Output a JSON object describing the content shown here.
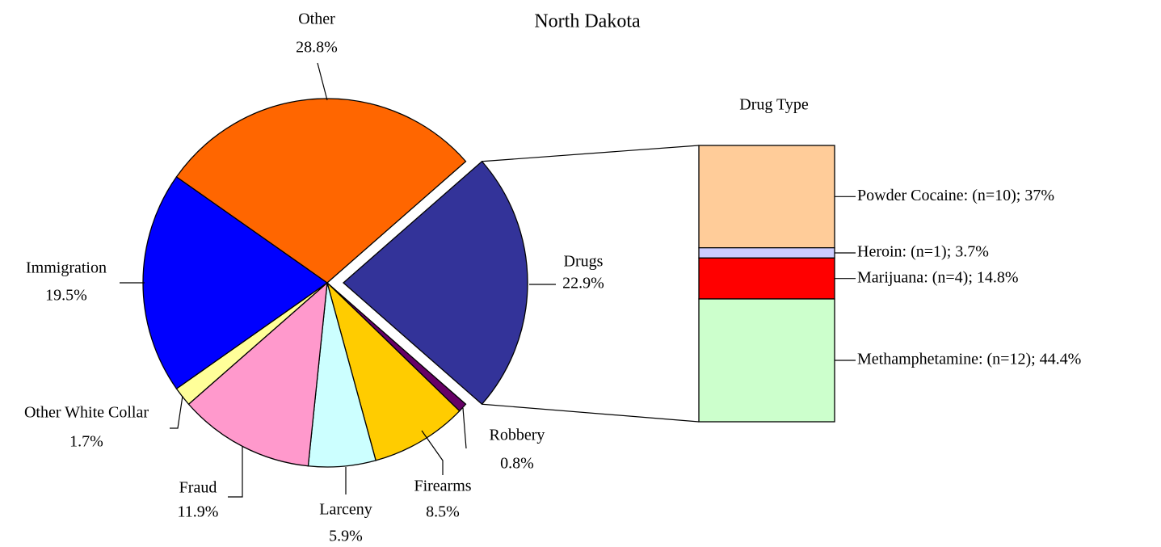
{
  "chart_data": {
    "type": "pie",
    "title": "North Dakota",
    "categories": [
      "Drugs",
      "Robbery",
      "Firearms",
      "Larceny",
      "Fraud",
      "Other White Collar",
      "Immigration",
      "Other"
    ],
    "values": [
      22.9,
      0.8,
      8.5,
      5.9,
      11.9,
      1.7,
      19.5,
      28.8
    ],
    "value_labels": [
      "22.9%",
      "0.8%",
      "8.5%",
      "5.9%",
      "11.9%",
      "1.7%",
      "19.5%",
      "28.8%"
    ],
    "colors": [
      "#333399",
      "#660066",
      "#ffcc00",
      "#ccffff",
      "#ff99cc",
      "#ffff99",
      "#0000ff",
      "#ff6600"
    ],
    "explode": "Drugs",
    "breakout": {
      "type": "stacked_bar",
      "title": "Drug Type",
      "values": [
        37,
        3.7,
        14.8,
        44.4
      ],
      "value_labels": [
        "Powder Cocaine: (n=10); 37%",
        "Heroin: (n=1); 3.7%",
        "Marijuana: (n=4); 14.8%",
        "Methamphetamine: (n=12); 44.4%"
      ],
      "colors": [
        "#ffcc99",
        "#ccccff",
        "#ff0000",
        "#ccffcc"
      ]
    }
  }
}
